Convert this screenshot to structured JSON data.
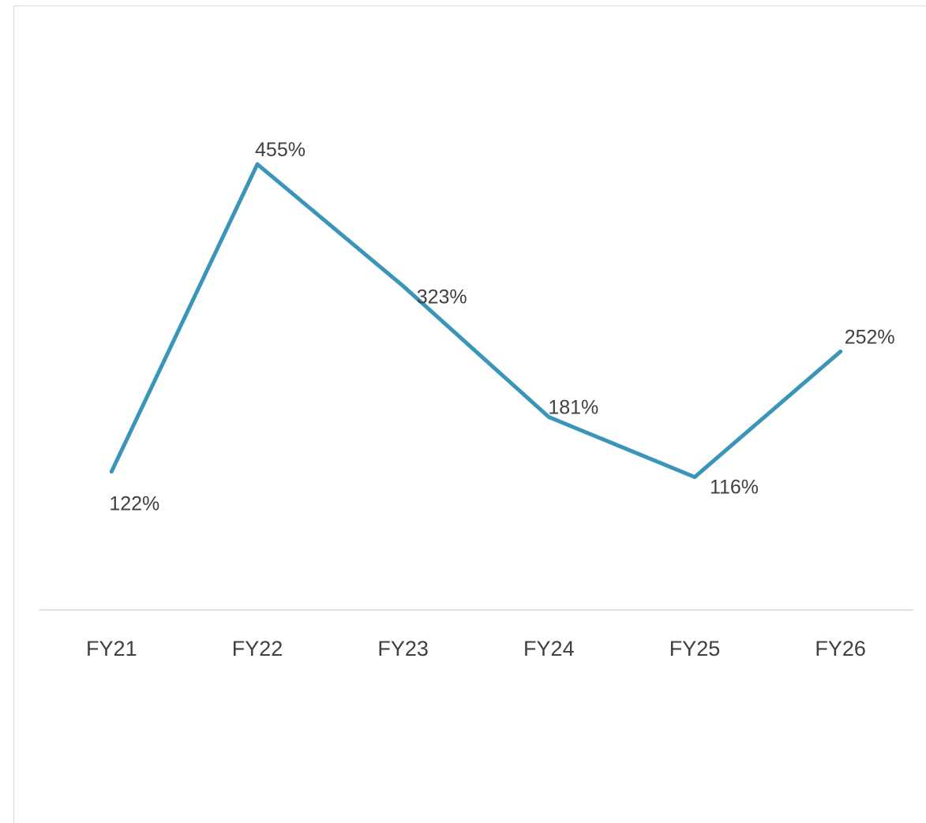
{
  "chart_data": {
    "type": "line",
    "title": "",
    "xlabel": "",
    "ylabel": "",
    "categories": [
      "FY21",
      "FY22",
      "FY23",
      "FY24",
      "FY25",
      "FY26"
    ],
    "series": [
      {
        "values": [
          122,
          455,
          323,
          181,
          116,
          252
        ],
        "labels": [
          "122%",
          "455%",
          "323%",
          "181%",
          "116%",
          "252%"
        ],
        "color": "#3a96b8"
      }
    ],
    "ylim": [
      -28,
      550
    ],
    "grid": false,
    "legend": "none",
    "axis_color": "#d9d9d9",
    "label_color": "#404040"
  }
}
